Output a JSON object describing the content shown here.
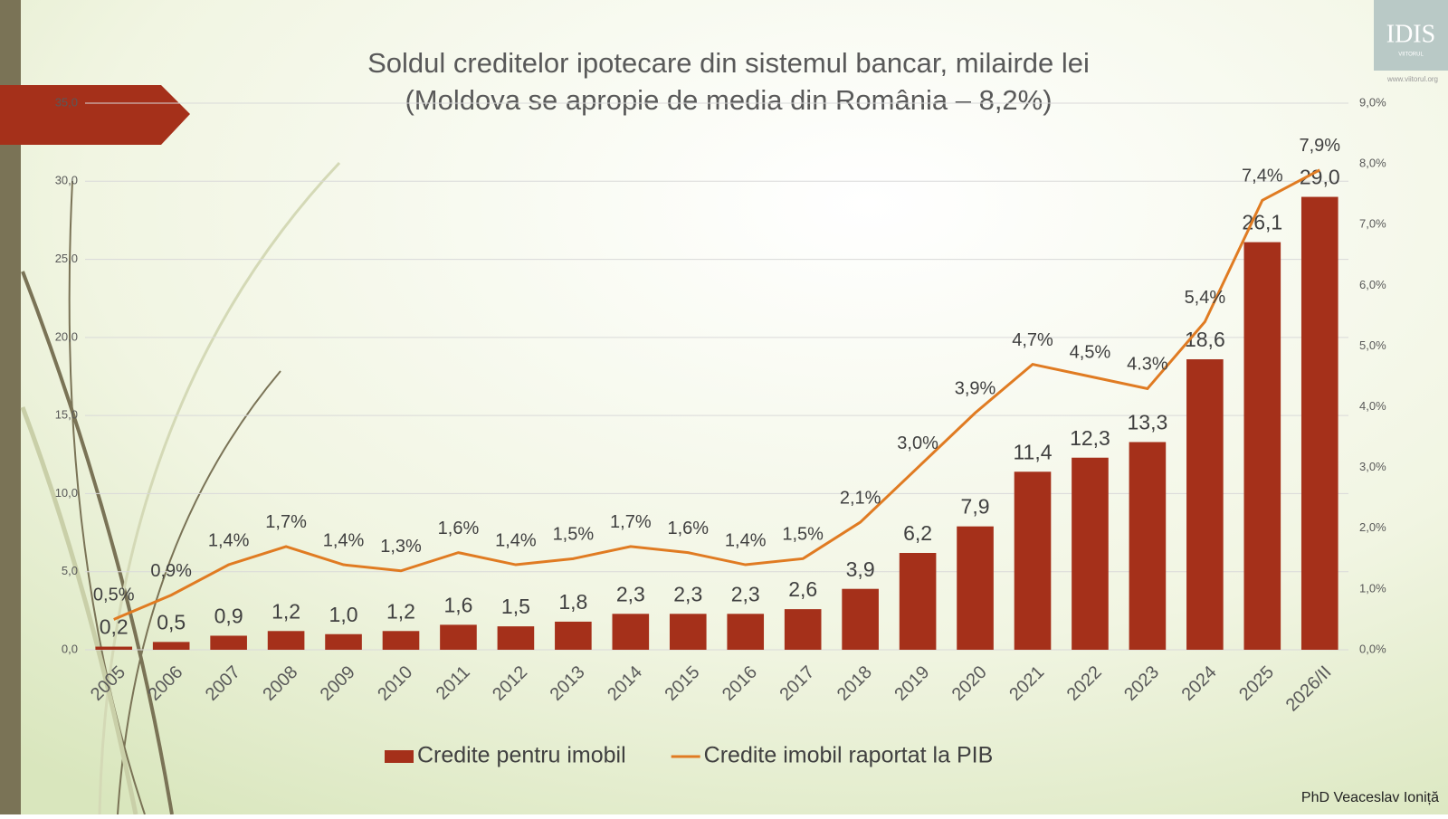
{
  "chart_data": {
    "type": "bar_line",
    "title": [
      "Soldul creditelor ipotecare din sistemul bancar, milairde lei",
      "(Moldova se apropie de media din România – 8,2%)"
    ],
    "categories": [
      "2005",
      "2006",
      "2007",
      "2008",
      "2009",
      "2010",
      "2011",
      "2012",
      "2013",
      "2014",
      "2015",
      "2016",
      "2017",
      "2018",
      "2019",
      "2020",
      "2021",
      "2022",
      "2023",
      "2024",
      "2025",
      "2026/II"
    ],
    "series": [
      {
        "name": "Credite pentru imobil",
        "type": "bar",
        "color": "#a5301a",
        "values": [
          0.2,
          0.5,
          0.9,
          1.2,
          1.0,
          1.2,
          1.6,
          1.5,
          1.8,
          2.3,
          2.3,
          2.3,
          2.6,
          3.9,
          6.2,
          7.9,
          11.4,
          12.3,
          13.3,
          18.6,
          26.1,
          29.0
        ],
        "value_labels": [
          "0,2",
          "0,5",
          "0,9",
          "1,2",
          "1,0",
          "1,2",
          "1,6",
          "1,5",
          "1,8",
          "2,3",
          "2,3",
          "2,3",
          "2,6",
          "3,9",
          "6,2",
          "7,9",
          "11,4",
          "12,3",
          "13,3",
          "18,6",
          "26,1",
          "29,0"
        ]
      },
      {
        "name": "Credite imobil raportat la PIB",
        "type": "line",
        "axis": "y2",
        "color": "#e07b22",
        "values": [
          0.5,
          0.9,
          1.4,
          1.7,
          1.4,
          1.3,
          1.6,
          1.4,
          1.5,
          1.7,
          1.6,
          1.4,
          1.5,
          2.1,
          3.0,
          3.9,
          4.7,
          4.5,
          4.3,
          5.4,
          7.4,
          7.9
        ],
        "value_labels": [
          "0,5%",
          "0,9%",
          "1,4%",
          "1,7%",
          "1,4%",
          "1,3%",
          "1,6%",
          "1,4%",
          "1,5%",
          "1,7%",
          "1,6%",
          "1,4%",
          "1,5%",
          "2,1%",
          "3,0%",
          "3,9%",
          "4,7%",
          "4,5%",
          "4.3%",
          "5,4%",
          "7,4%",
          "7,9%"
        ]
      }
    ],
    "ylim": [
      0,
      35
    ],
    "yticks": [
      {
        "value": 0,
        "label": "0,0"
      },
      {
        "value": 5,
        "label": "5,0"
      },
      {
        "value": 10,
        "label": "10,0"
      },
      {
        "value": 15,
        "label": "15,0"
      },
      {
        "value": 20,
        "label": "20,0"
      },
      {
        "value": 25,
        "label": "25,0"
      },
      {
        "value": 30,
        "label": "30,0"
      },
      {
        "value": 35,
        "label": "35,0"
      }
    ],
    "y2lim": [
      0,
      9
    ],
    "y2ticks": [
      {
        "value": 0,
        "label": "0,0%"
      },
      {
        "value": 1,
        "label": "1,0%"
      },
      {
        "value": 2,
        "label": "2,0%"
      },
      {
        "value": 3,
        "label": "3,0%"
      },
      {
        "value": 4,
        "label": "4,0%"
      },
      {
        "value": 5,
        "label": "5,0%"
      },
      {
        "value": 6,
        "label": "6,0%"
      },
      {
        "value": 7,
        "label": "7,0%"
      },
      {
        "value": 8,
        "label": "8,0%"
      },
      {
        "value": 9,
        "label": "9,0%"
      }
    ],
    "grid": true,
    "legend": "bottom"
  },
  "footer": "PhD Veaceslav Ioniță",
  "logo": {
    "text": "IDIS",
    "sub": "VIITORUL",
    "url": "www.viitorul.org"
  }
}
